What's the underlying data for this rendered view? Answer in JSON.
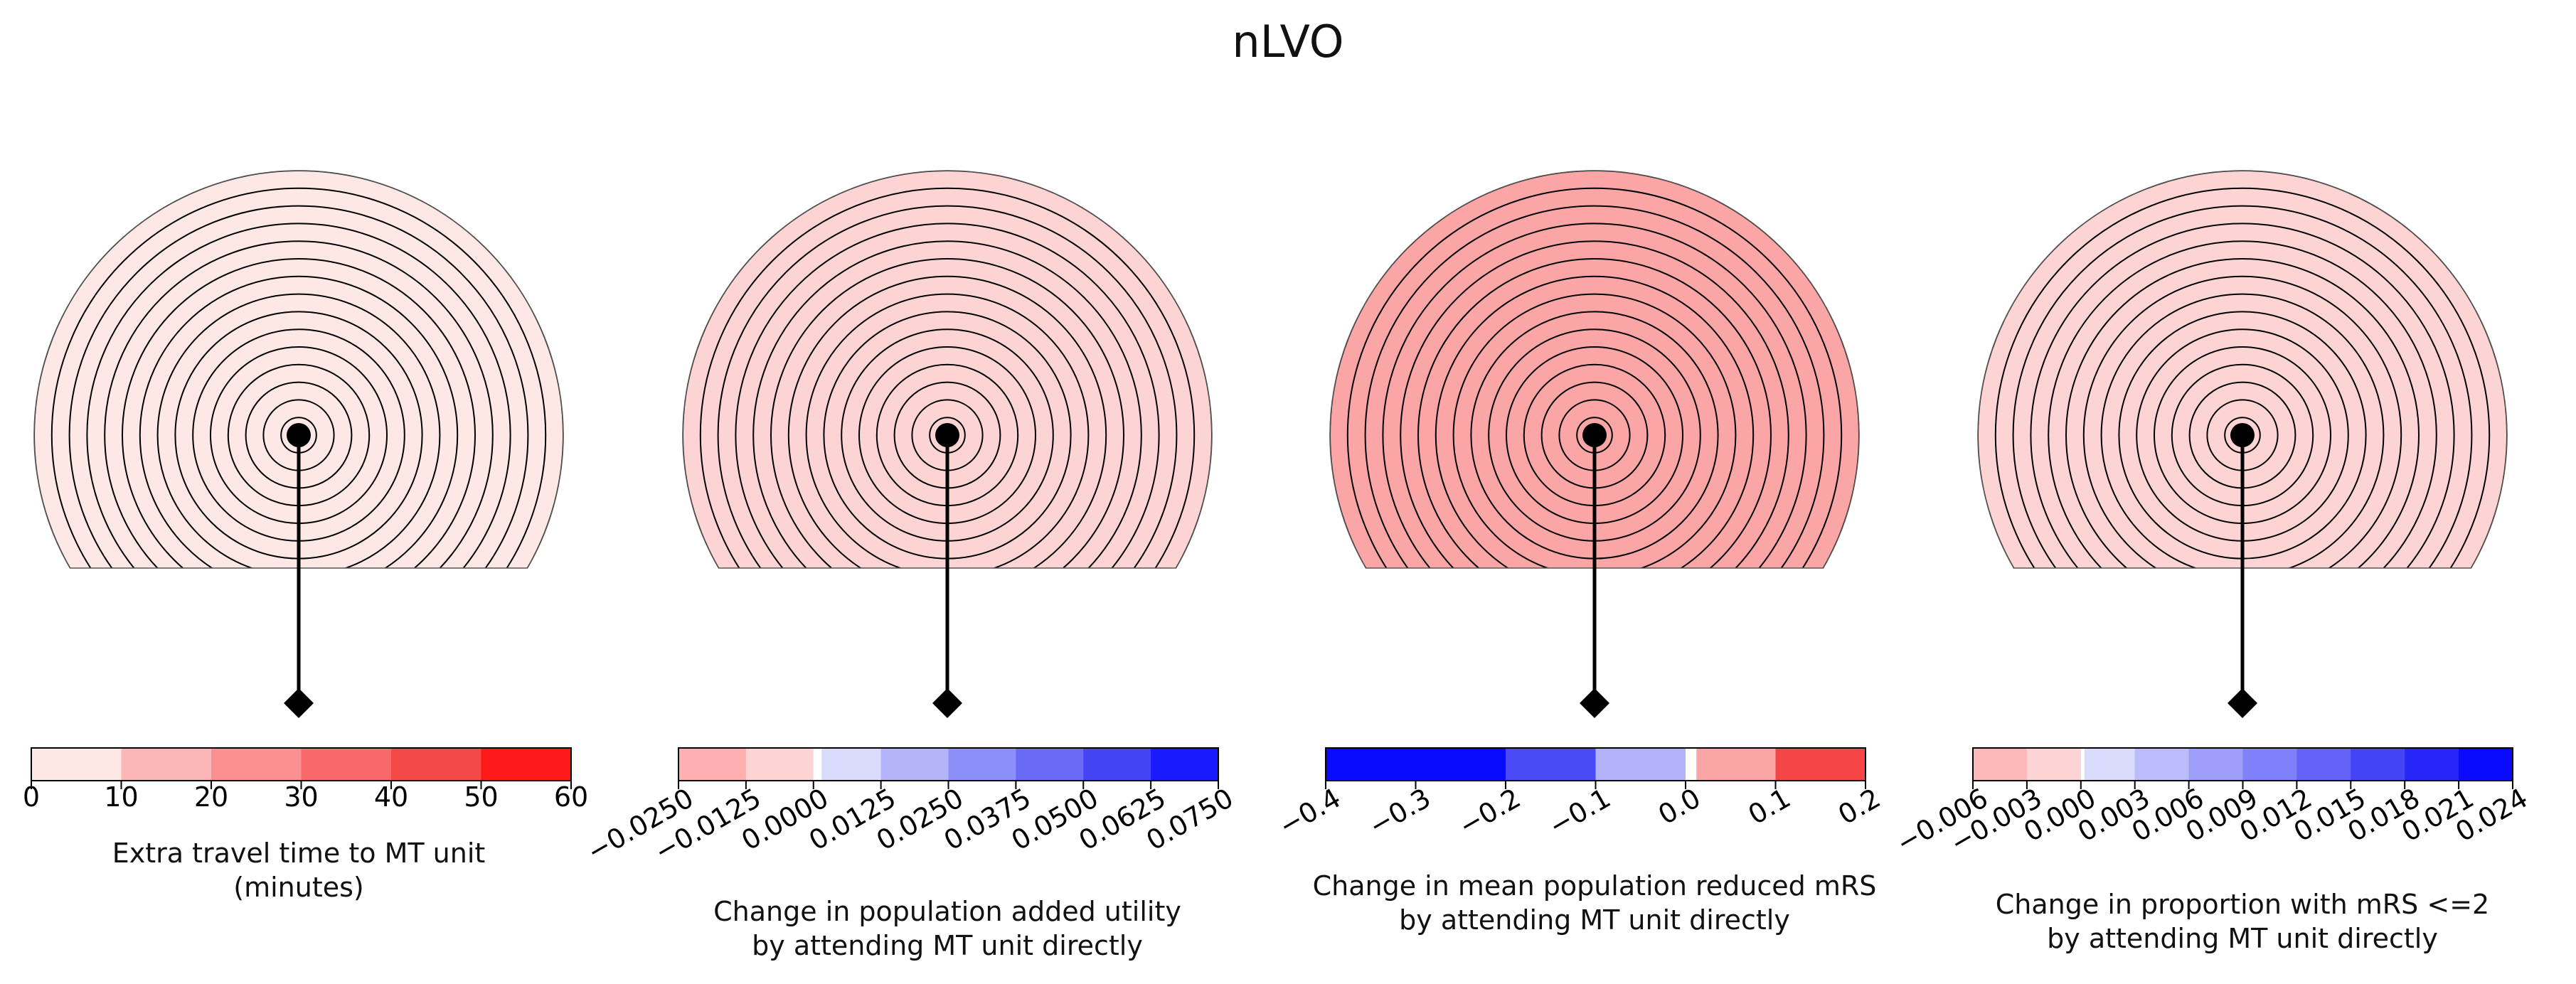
{
  "figure": {
    "title": "nLVO"
  },
  "chart_data": [
    {
      "type": "heatmap",
      "colorbar": {
        "ticks": [
          "0",
          "10",
          "20",
          "30",
          "40",
          "50",
          "60"
        ],
        "tick_rotation": 0,
        "bins": [
          {
            "from": 0,
            "to": 10,
            "color": "#fee8e6"
          },
          {
            "from": 10,
            "to": 20,
            "color": "#fcb6b6"
          },
          {
            "from": 20,
            "to": 30,
            "color": "#fa9090"
          },
          {
            "from": 30,
            "to": 40,
            "color": "#f86a6a"
          },
          {
            "from": 40,
            "to": 50,
            "color": "#f54848"
          },
          {
            "from": 50,
            "to": 60,
            "color": "#ff1a1a"
          }
        ],
        "label": [
          "Extra travel time to MT unit",
          "(minutes)"
        ]
      },
      "regions": [
        {
          "type": "wedge",
          "half_angle_deg": 42,
          "color": "#ff1a1a"
        },
        {
          "type": "band",
          "above_y": -0.06,
          "color": "#f54848"
        },
        {
          "type": "band",
          "above_y": -0.3,
          "color": "#f86a6a"
        },
        {
          "type": "band",
          "above_y": -0.45,
          "color": "#fa9090"
        },
        {
          "type": "band",
          "above_y": -0.58,
          "color": "#fcb6b6"
        },
        {
          "type": "base",
          "color": "#fee8e6"
        }
      ]
    },
    {
      "type": "heatmap",
      "colorbar": {
        "ticks": [
          "−0.0250",
          "−0.0125",
          "0.0000",
          "0.0125",
          "0.0250",
          "0.0375",
          "0.0500",
          "0.0625",
          "0.0750"
        ],
        "tick_rotation": -30,
        "bins": [
          {
            "from": -0.025,
            "to": -0.0125,
            "color": "#fcb0b0"
          },
          {
            "from": -0.0125,
            "to": 0,
            "color": "#fdd4d4"
          },
          {
            "from": 0,
            "to": 0.0125,
            "color": "#dadafd"
          },
          {
            "from": 0.0125,
            "to": 0.025,
            "color": "#b4b4fb"
          },
          {
            "from": 0.025,
            "to": 0.0375,
            "color": "#8e8ef9"
          },
          {
            "from": 0.0375,
            "to": 0.05,
            "color": "#6a6af7"
          },
          {
            "from": 0.05,
            "to": 0.0625,
            "color": "#4444f5"
          },
          {
            "from": 0.0625,
            "to": 0.075,
            "color": "#1a1aff"
          }
        ],
        "gap": {
          "from": 0,
          "to": 0.0015
        },
        "label": [
          "Change in population added utility",
          "by attending MT unit directly"
        ]
      },
      "regions": [
        {
          "type": "wedge_band",
          "half_angle_deg": 75,
          "above_y": -0.12,
          "color": "#fcb0b0"
        },
        {
          "type": "base",
          "color": "#fdd4d4"
        }
      ]
    },
    {
      "type": "heatmap",
      "colorbar": {
        "ticks": [
          "−0.4",
          "−0.3",
          "−0.2",
          "−0.1",
          "0.0",
          "0.1",
          "0.2"
        ],
        "tick_rotation": -30,
        "bins": [
          {
            "from": -0.4,
            "to": -0.2,
            "color": "#0a0aff"
          },
          {
            "from": -0.2,
            "to": -0.1,
            "color": "#4a4af7"
          },
          {
            "from": -0.1,
            "to": 0,
            "color": "#b2b2fb"
          },
          {
            "from": 0,
            "to": 0.1,
            "color": "#fba6a6"
          },
          {
            "from": 0.1,
            "to": 0.2,
            "color": "#f64545"
          }
        ],
        "gap": {
          "from": 0,
          "to": 0.012
        },
        "label": [
          "Change in mean population reduced mRS",
          "by attending MT unit directly"
        ]
      },
      "regions": [
        {
          "type": "wedge",
          "half_angle_deg": 40,
          "color": "#f64545"
        },
        {
          "type": "base",
          "color": "#fba6a6"
        }
      ]
    },
    {
      "type": "heatmap",
      "colorbar": {
        "ticks": [
          "−0.006",
          "−0.003",
          "0.000",
          "0.003",
          "0.006",
          "0.009",
          "0.012",
          "0.015",
          "0.018",
          "0.021",
          "0.024"
        ],
        "tick_rotation": -30,
        "bins": [
          {
            "from": -0.006,
            "to": -0.003,
            "color": "#fcb8b8"
          },
          {
            "from": -0.003,
            "to": 0,
            "color": "#fdd4d4"
          },
          {
            "from": 0,
            "to": 0.003,
            "color": "#dadafd"
          },
          {
            "from": 0.003,
            "to": 0.006,
            "color": "#bcbcfb"
          },
          {
            "from": 0.006,
            "to": 0.009,
            "color": "#9e9efa"
          },
          {
            "from": 0.009,
            "to": 0.012,
            "color": "#8080f8"
          },
          {
            "from": 0.012,
            "to": 0.015,
            "color": "#6262f7"
          },
          {
            "from": 0.015,
            "to": 0.018,
            "color": "#4444f6"
          },
          {
            "from": 0.018,
            "to": 0.021,
            "color": "#2626f7"
          },
          {
            "from": 0.021,
            "to": 0.024,
            "color": "#0a0aff"
          }
        ],
        "gap": {
          "from": 0,
          "to": 0.0002
        },
        "label": [
          "Change in proportion with mRS <=2",
          "by attending MT unit directly"
        ]
      },
      "regions": [
        {
          "type": "wedge_band",
          "half_angle_deg": 64,
          "above_y": -0.05,
          "color": "#fcbcbc"
        },
        {
          "type": "base",
          "color": "#fdd4d4"
        }
      ]
    }
  ]
}
